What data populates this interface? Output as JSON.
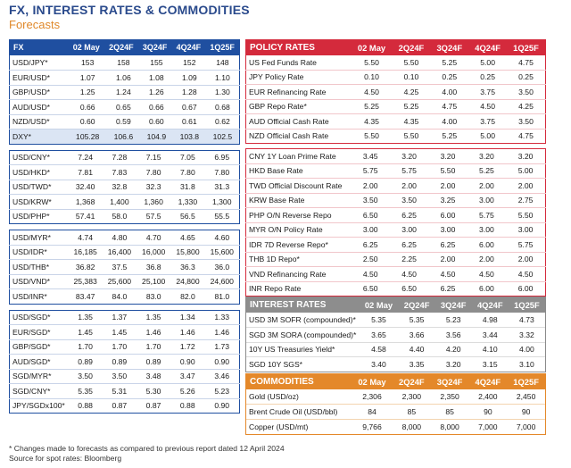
{
  "title": "FX, INTEREST RATES & COMMODITIES",
  "subtitle": "Forecasts",
  "columns": [
    "02 May",
    "2Q24F",
    "3Q24F",
    "4Q24F",
    "1Q25F"
  ],
  "fx": {
    "header": "FX",
    "groups": [
      [
        {
          "label": "USD/JPY*",
          "values": [
            "153",
            "158",
            "155",
            "152",
            "148"
          ]
        },
        {
          "label": "EUR/USD*",
          "values": [
            "1.07",
            "1.06",
            "1.08",
            "1.09",
            "1.10"
          ]
        },
        {
          "label": "GBP/USD*",
          "values": [
            "1.25",
            "1.24",
            "1.26",
            "1.28",
            "1.30"
          ]
        },
        {
          "label": "AUD/USD*",
          "values": [
            "0.66",
            "0.65",
            "0.66",
            "0.67",
            "0.68"
          ]
        },
        {
          "label": "NZD/USD*",
          "values": [
            "0.60",
            "0.59",
            "0.60",
            "0.61",
            "0.62"
          ]
        },
        {
          "label": "DXY*",
          "values": [
            "105.28",
            "106.6",
            "104.9",
            "103.8",
            "102.5"
          ],
          "dxy": true
        }
      ],
      [
        {
          "label": "USD/CNY*",
          "values": [
            "7.24",
            "7.28",
            "7.15",
            "7.05",
            "6.95"
          ]
        },
        {
          "label": "USD/HKD*",
          "values": [
            "7.81",
            "7.83",
            "7.80",
            "7.80",
            "7.80"
          ]
        },
        {
          "label": "USD/TWD*",
          "values": [
            "32.40",
            "32.8",
            "32.3",
            "31.8",
            "31.3"
          ]
        },
        {
          "label": "USD/KRW*",
          "values": [
            "1,368",
            "1,400",
            "1,360",
            "1,330",
            "1,300"
          ]
        },
        {
          "label": "USD/PHP*",
          "values": [
            "57.41",
            "58.0",
            "57.5",
            "56.5",
            "55.5"
          ]
        }
      ],
      [
        {
          "label": "USD/MYR*",
          "values": [
            "4.74",
            "4.80",
            "4.70",
            "4.65",
            "4.60"
          ]
        },
        {
          "label": "USD/IDR*",
          "values": [
            "16,185",
            "16,400",
            "16,000",
            "15,800",
            "15,600"
          ]
        },
        {
          "label": "USD/THB*",
          "values": [
            "36.82",
            "37.5",
            "36.8",
            "36.3",
            "36.0"
          ]
        },
        {
          "label": "USD/VND*",
          "values": [
            "25,383",
            "25,600",
            "25,100",
            "24,800",
            "24,600"
          ]
        },
        {
          "label": "USD/INR*",
          "values": [
            "83.47",
            "84.0",
            "83.0",
            "82.0",
            "81.0"
          ]
        }
      ],
      [
        {
          "label": "USD/SGD*",
          "values": [
            "1.35",
            "1.37",
            "1.35",
            "1.34",
            "1.33"
          ]
        },
        {
          "label": "EUR/SGD*",
          "values": [
            "1.45",
            "1.45",
            "1.46",
            "1.46",
            "1.46"
          ]
        },
        {
          "label": "GBP/SGD*",
          "values": [
            "1.70",
            "1.70",
            "1.70",
            "1.72",
            "1.73"
          ]
        },
        {
          "label": "AUD/SGD*",
          "values": [
            "0.89",
            "0.89",
            "0.89",
            "0.90",
            "0.90"
          ]
        },
        {
          "label": "SGD/MYR*",
          "values": [
            "3.50",
            "3.50",
            "3.48",
            "3.47",
            "3.46"
          ]
        },
        {
          "label": "SGD/CNY*",
          "values": [
            "5.35",
            "5.31",
            "5.30",
            "5.26",
            "5.23"
          ]
        },
        {
          "label": "JPY/SGDx100*",
          "values": [
            "0.88",
            "0.87",
            "0.87",
            "0.88",
            "0.90"
          ]
        }
      ]
    ]
  },
  "policy": {
    "header": "POLICY RATES",
    "groups": [
      [
        {
          "label": "US Fed Funds Rate",
          "values": [
            "5.50",
            "5.50",
            "5.25",
            "5.00",
            "4.75"
          ]
        },
        {
          "label": "JPY Policy Rate",
          "values": [
            "0.10",
            "0.10",
            "0.25",
            "0.25",
            "0.25"
          ]
        },
        {
          "label": "EUR Refinancing Rate",
          "values": [
            "4.50",
            "4.25",
            "4.00",
            "3.75",
            "3.50"
          ]
        },
        {
          "label": "GBP Repo Rate*",
          "values": [
            "5.25",
            "5.25",
            "4.75",
            "4.50",
            "4.25"
          ]
        },
        {
          "label": "AUD Official Cash Rate",
          "values": [
            "4.35",
            "4.35",
            "4.00",
            "3.75",
            "3.50"
          ]
        },
        {
          "label": "NZD Official Cash Rate",
          "values": [
            "5.50",
            "5.50",
            "5.25",
            "5.00",
            "4.75"
          ]
        }
      ],
      [
        {
          "label": "CNY 1Y Loan Prime Rate",
          "values": [
            "3.45",
            "3.20",
            "3.20",
            "3.20",
            "3.20"
          ]
        },
        {
          "label": "HKD Base Rate",
          "values": [
            "5.75",
            "5.75",
            "5.50",
            "5.25",
            "5.00"
          ]
        },
        {
          "label": "TWD Official Discount Rate",
          "values": [
            "2.00",
            "2.00",
            "2.00",
            "2.00",
            "2.00"
          ]
        },
        {
          "label": "KRW Base Rate",
          "values": [
            "3.50",
            "3.50",
            "3.25",
            "3.00",
            "2.75"
          ]
        },
        {
          "label": "PHP O/N Reverse Repo",
          "values": [
            "6.50",
            "6.25",
            "6.00",
            "5.75",
            "5.50"
          ]
        },
        {
          "label": "MYR O/N Policy Rate",
          "values": [
            "3.00",
            "3.00",
            "3.00",
            "3.00",
            "3.00"
          ]
        },
        {
          "label": "IDR 7D Reverse Repo*",
          "values": [
            "6.25",
            "6.25",
            "6.25",
            "6.00",
            "5.75"
          ]
        },
        {
          "label": "THB 1D Repo*",
          "values": [
            "2.50",
            "2.25",
            "2.00",
            "2.00",
            "2.00"
          ]
        },
        {
          "label": "VND Refinancing Rate",
          "values": [
            "4.50",
            "4.50",
            "4.50",
            "4.50",
            "4.50"
          ]
        },
        {
          "label": "INR Repo Rate",
          "values": [
            "6.50",
            "6.50",
            "6.25",
            "6.00",
            "6.00"
          ]
        }
      ]
    ]
  },
  "interest": {
    "header": "INTEREST RATES",
    "rows": [
      {
        "label": "USD 3M SOFR (compounded)*",
        "values": [
          "5.35",
          "5.35",
          "5.23",
          "4.98",
          "4.73"
        ]
      },
      {
        "label": "SGD 3M SORA (compounded)*",
        "values": [
          "3.65",
          "3.66",
          "3.56",
          "3.44",
          "3.32"
        ]
      },
      {
        "label": "10Y US Treasuries Yield*",
        "values": [
          "4.58",
          "4.40",
          "4.20",
          "4.10",
          "4.00"
        ]
      },
      {
        "label": "SGD 10Y SGS*",
        "values": [
          "3.40",
          "3.35",
          "3.20",
          "3.15",
          "3.10"
        ]
      }
    ]
  },
  "commodities": {
    "header": "COMMODITIES",
    "rows": [
      {
        "label": "Gold (USD/oz)",
        "values": [
          "2,306",
          "2,300",
          "2,350",
          "2,400",
          "2,450"
        ]
      },
      {
        "label": "Brent Crude Oil (USD/bbl)",
        "values": [
          "84",
          "85",
          "85",
          "90",
          "90"
        ]
      },
      {
        "label": "Copper (USD/mt)",
        "values": [
          "9,766",
          "8,000",
          "8,000",
          "7,000",
          "7,000"
        ]
      }
    ]
  },
  "footnote": {
    "line1": "* Changes made to forecasts as compared to previous report dated 12 April 2024",
    "line2": "Source for spot rates: Bloomberg"
  },
  "colors": {
    "blue": "#1f4fa0",
    "red": "#d42a3c",
    "gray": "#8d8d8d",
    "orange": "#e4882a",
    "accent": "#e0882a"
  }
}
